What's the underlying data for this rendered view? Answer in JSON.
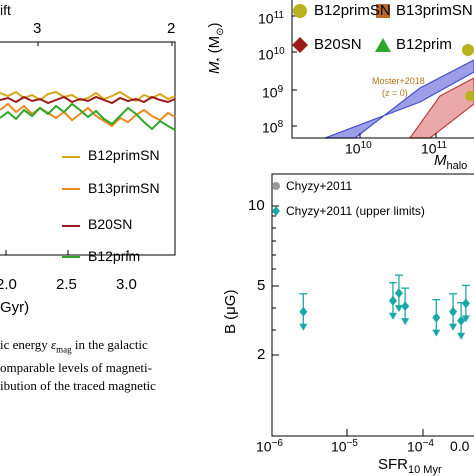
{
  "left_panel": {
    "top_axis_label_fragment": "ift",
    "top_ticks": [
      "3",
      "2"
    ],
    "bottom_ticks": [
      "2.0",
      "2.5",
      "3.0"
    ],
    "xlabel_fragment": "Gyr)",
    "legend": [
      {
        "label": "B12primSN",
        "color": "#d4a817"
      },
      {
        "label": "B13primSN",
        "color": "#ee8a1c"
      },
      {
        "label": "B20SN",
        "color": "#9b1a1a"
      },
      {
        "label": "B12prim",
        "color": "#2ea82a"
      }
    ]
  },
  "caption": {
    "line1_prefix": "ic energy ",
    "line1_symbol": "ε",
    "line1_sub": "mag",
    "line1_suffix": " in the galactic",
    "line2": "omparable levels of magneti-",
    "line3": "ibution of the traced magnetic"
  },
  "right_top_panel": {
    "ylabel_main": "M",
    "ylabel_sub": "*",
    "ylabel_unit_open": "(M",
    "ylabel_unit_sub": "⊙",
    "ylabel_unit_close": ")",
    "xlabel_main": "M",
    "xlabel_sub": "halo",
    "y_ticks": [
      "10",
      "10",
      "10",
      "10"
    ],
    "y_tick_exps": [
      "11",
      "10",
      "9",
      "8"
    ],
    "x_ticks": [
      "10",
      "10"
    ],
    "x_tick_exps": [
      "10",
      "11"
    ],
    "legend": [
      {
        "label": "B12primSN",
        "color": "#b8b21e",
        "marker": "circle"
      },
      {
        "label": "B13primSN",
        "color": "#b86a2a",
        "marker": "square"
      },
      {
        "label": "B20SN",
        "color": "#9b1a1a",
        "marker": "diamond"
      },
      {
        "label": "B12prim",
        "color": "#2ea82a",
        "marker": "triangle"
      }
    ],
    "annotation_line1": "Moster+2018",
    "annotation_line2": "(z = 0)",
    "annotation_color": "#b8741c"
  },
  "right_bottom_panel": {
    "ylabel": "B (μG)",
    "xlabel_main": "SFR",
    "xlabel_sub": "10 Myr",
    "y_ticks": [
      "10",
      "5",
      "2"
    ],
    "x_ticks": [
      "10",
      "10",
      "10",
      "0.0"
    ],
    "x_tick_exps": [
      "−6",
      "−5",
      "−4",
      ""
    ],
    "legend": [
      {
        "label": "Chyzy+2011",
        "color": "#9a9a9a",
        "marker": "circle"
      },
      {
        "label": "Chyzy+2011 (upper limits)",
        "color": "#19a8a8",
        "marker": "diamond"
      }
    ],
    "points_color": "#19a8a8"
  },
  "chart_data": [
    {
      "type": "scatter",
      "title": "",
      "xlabel": "SFR10Myr",
      "ylabel": "B (μG)",
      "xscale": "log",
      "yscale": "log",
      "xlim": [
        1e-06,
        0.001
      ],
      "ylim": [
        1,
        20
      ],
      "series": [
        {
          "name": "Chyzy+2011 (upper limits)",
          "x": [
            2.6e-06,
            4e-05,
            4.8e-05,
            5.8e-05,
            0.00015,
            0.00025,
            0.00032,
            0.00037
          ],
          "y": [
            4.0,
            4.4,
            4.7,
            4.2,
            3.8,
            4.0,
            3.7,
            4.3
          ]
        }
      ]
    }
  ]
}
